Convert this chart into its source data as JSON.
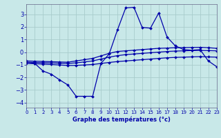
{
  "xlabel": "Graphe des températures (°c)",
  "xlim": [
    0,
    23
  ],
  "ylim": [
    -4.4,
    3.8
  ],
  "yticks": [
    -4,
    -3,
    -2,
    -1,
    0,
    1,
    2,
    3
  ],
  "xticks": [
    0,
    1,
    2,
    3,
    4,
    5,
    6,
    7,
    8,
    9,
    10,
    11,
    12,
    13,
    14,
    15,
    16,
    17,
    18,
    19,
    20,
    21,
    22,
    23
  ],
  "background_color": "#c8e8e8",
  "grid_color": "#a8cccc",
  "line_color": "#0000aa",
  "curve_volatile_x": [
    0,
    1,
    2,
    3,
    4,
    5,
    6,
    7,
    8,
    9,
    10,
    11,
    12,
    13,
    14,
    15,
    16,
    17,
    18,
    19,
    20,
    21,
    22,
    23
  ],
  "curve_volatile_y": [
    -0.8,
    -0.9,
    -1.5,
    -1.75,
    -2.2,
    -2.6,
    -3.5,
    -3.5,
    -3.5,
    -0.9,
    -0.15,
    1.75,
    3.5,
    3.55,
    1.95,
    1.9,
    3.1,
    1.2,
    0.5,
    0.2,
    0.15,
    0.2,
    -0.7,
    -1.15
  ],
  "curve_upper_x": [
    0,
    1,
    2,
    3,
    4,
    5,
    6,
    7,
    8,
    9,
    10,
    11,
    12,
    13,
    14,
    15,
    16,
    17,
    18,
    19,
    20,
    21,
    22,
    23
  ],
  "curve_upper_y": [
    -0.7,
    -0.72,
    -0.74,
    -0.76,
    -0.78,
    -0.8,
    -0.7,
    -0.6,
    -0.5,
    -0.3,
    -0.1,
    0.05,
    0.1,
    0.15,
    0.2,
    0.25,
    0.3,
    0.32,
    0.35,
    0.36,
    0.37,
    0.38,
    0.35,
    0.3
  ],
  "curve_mid_x": [
    0,
    1,
    2,
    3,
    4,
    5,
    6,
    7,
    8,
    9,
    10,
    11,
    12,
    13,
    14,
    15,
    16,
    17,
    18,
    19,
    20,
    21,
    22,
    23
  ],
  "curve_mid_y": [
    -0.8,
    -0.82,
    -0.84,
    -0.86,
    -0.88,
    -0.9,
    -0.85,
    -0.78,
    -0.7,
    -0.55,
    -0.4,
    -0.28,
    -0.2,
    -0.15,
    -0.1,
    -0.05,
    0.0,
    0.05,
    0.08,
    0.1,
    0.12,
    0.13,
    0.12,
    0.1
  ],
  "curve_lower_x": [
    0,
    1,
    2,
    3,
    4,
    5,
    6,
    7,
    8,
    9,
    10,
    11,
    12,
    13,
    14,
    15,
    16,
    17,
    18,
    19,
    20,
    21,
    22,
    23
  ],
  "curve_lower_y": [
    -0.9,
    -0.92,
    -0.95,
    -0.98,
    -1.02,
    -1.06,
    -1.05,
    -1.02,
    -0.98,
    -0.9,
    -0.82,
    -0.75,
    -0.7,
    -0.65,
    -0.6,
    -0.55,
    -0.5,
    -0.45,
    -0.42,
    -0.4,
    -0.38,
    -0.36,
    -0.38,
    -0.4
  ]
}
